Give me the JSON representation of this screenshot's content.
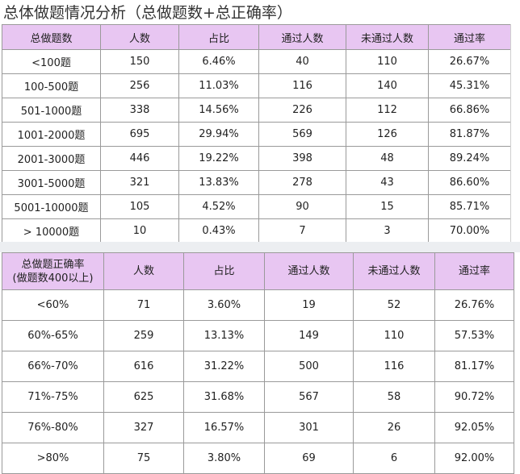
{
  "title": "总体做题情况分析（总做题数+总正确率）",
  "table1": {
    "headers": [
      "总做题数",
      "人数",
      "占比",
      "通过人数",
      "未通过人数",
      "通过率"
    ],
    "rows": [
      [
        "<100题",
        "150",
        "6.46%",
        "40",
        "110",
        "26.67%"
      ],
      [
        "100-500题",
        "256",
        "11.03%",
        "116",
        "140",
        "45.31%"
      ],
      [
        "501-1000题",
        "338",
        "14.56%",
        "226",
        "112",
        "66.86%"
      ],
      [
        "1001-2000题",
        "695",
        "29.94%",
        "569",
        "126",
        "81.87%"
      ],
      [
        "2001-3000题",
        "446",
        "19.22%",
        "398",
        "48",
        "89.24%"
      ],
      [
        "3001-5000题",
        "321",
        "13.83%",
        "278",
        "43",
        "86.60%"
      ],
      [
        "5001-10000题",
        "105",
        "4.52%",
        "90",
        "15",
        "85.71%"
      ],
      [
        "> 10000题",
        "10",
        "0.43%",
        "7",
        "3",
        "70.00%"
      ]
    ]
  },
  "table2": {
    "headers": [
      "总做题正确率",
      "人数",
      "占比",
      "通过人数",
      "未通过人数",
      "通过率"
    ],
    "header_sub": "(做题数400以上)",
    "rows": [
      [
        "<60%",
        "71",
        "3.60%",
        "19",
        "52",
        "26.76%"
      ],
      [
        "60%-65%",
        "259",
        "13.13%",
        "149",
        "110",
        "57.53%"
      ],
      [
        "66%-70%",
        "616",
        "31.22%",
        "500",
        "116",
        "81.17%"
      ],
      [
        "71%-75%",
        "625",
        "31.68%",
        "567",
        "58",
        "90.72%"
      ],
      [
        "76%-80%",
        "327",
        "16.57%",
        "301",
        "26",
        "92.05%"
      ],
      [
        ">80%",
        "75",
        "3.80%",
        "69",
        "6",
        "92.00%"
      ]
    ]
  },
  "colors": {
    "header_bg": "#e8c6f2",
    "border": "#9a9a9a",
    "gap_bg": "#eceef1"
  }
}
